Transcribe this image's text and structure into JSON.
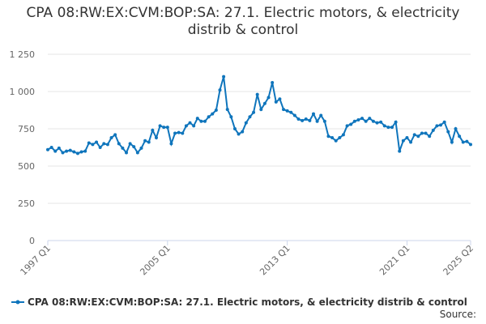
{
  "chart_data": {
    "type": "line",
    "title": "CPA 08:RW:EX:CVM:BOP:SA: 27.1. Electric motors, & electricity distrib & control",
    "categories": [
      "1997 Q1",
      null,
      null,
      null,
      null,
      null,
      null,
      null,
      null,
      null,
      null,
      null,
      null,
      null,
      null,
      null,
      null,
      null,
      null,
      null,
      null,
      null,
      null,
      null,
      null,
      null,
      null,
      null,
      null,
      null,
      null,
      null,
      "2005 Q1",
      null,
      null,
      null,
      null,
      null,
      null,
      null,
      null,
      null,
      null,
      null,
      null,
      null,
      null,
      null,
      null,
      null,
      null,
      null,
      null,
      null,
      null,
      null,
      null,
      null,
      null,
      null,
      null,
      null,
      null,
      null,
      "2013 Q1",
      null,
      null,
      null,
      null,
      null,
      null,
      null,
      null,
      null,
      null,
      null,
      null,
      null,
      null,
      null,
      null,
      null,
      null,
      null,
      null,
      null,
      null,
      null,
      null,
      null,
      null,
      null,
      null,
      null,
      null,
      null,
      "2021 Q1",
      null,
      null,
      null,
      null,
      null,
      null,
      null,
      null,
      null,
      null,
      null,
      null,
      null,
      null,
      null,
      null,
      "2025 Q2"
    ],
    "series": [
      {
        "name": "CPA 08:RW:EX:CVM:BOP:SA: 27.1. Electric motors, & electricity distrib & control",
        "color": "#0f75bc",
        "values": [
          610,
          625,
          600,
          620,
          590,
          600,
          605,
          595,
          585,
          595,
          600,
          655,
          645,
          660,
          625,
          650,
          645,
          690,
          710,
          650,
          620,
          590,
          650,
          630,
          590,
          620,
          670,
          660,
          740,
          690,
          770,
          760,
          760,
          650,
          720,
          725,
          720,
          770,
          790,
          770,
          820,
          800,
          800,
          830,
          850,
          875,
          1010,
          1100,
          880,
          830,
          750,
          715,
          730,
          790,
          830,
          860,
          980,
          880,
          920,
          960,
          1060,
          930,
          950,
          880,
          870,
          860,
          840,
          815,
          805,
          815,
          805,
          850,
          800,
          840,
          800,
          700,
          690,
          670,
          690,
          710,
          770,
          780,
          800,
          810,
          820,
          800,
          820,
          800,
          790,
          795,
          770,
          760,
          760,
          795,
          600,
          670,
          690,
          660,
          710,
          700,
          720,
          720,
          700,
          740,
          770,
          775,
          795,
          730,
          660,
          750,
          700,
          660,
          665,
          645
        ]
      }
    ],
    "ylim": [
      0,
      1250
    ],
    "yticks": [
      0,
      250,
      500,
      750,
      {
        "value": 1000,
        "label": "1 000"
      },
      {
        "value": 1250,
        "label": "1 250"
      }
    ],
    "grid": true,
    "legend": "bottom",
    "source": "Source:"
  }
}
